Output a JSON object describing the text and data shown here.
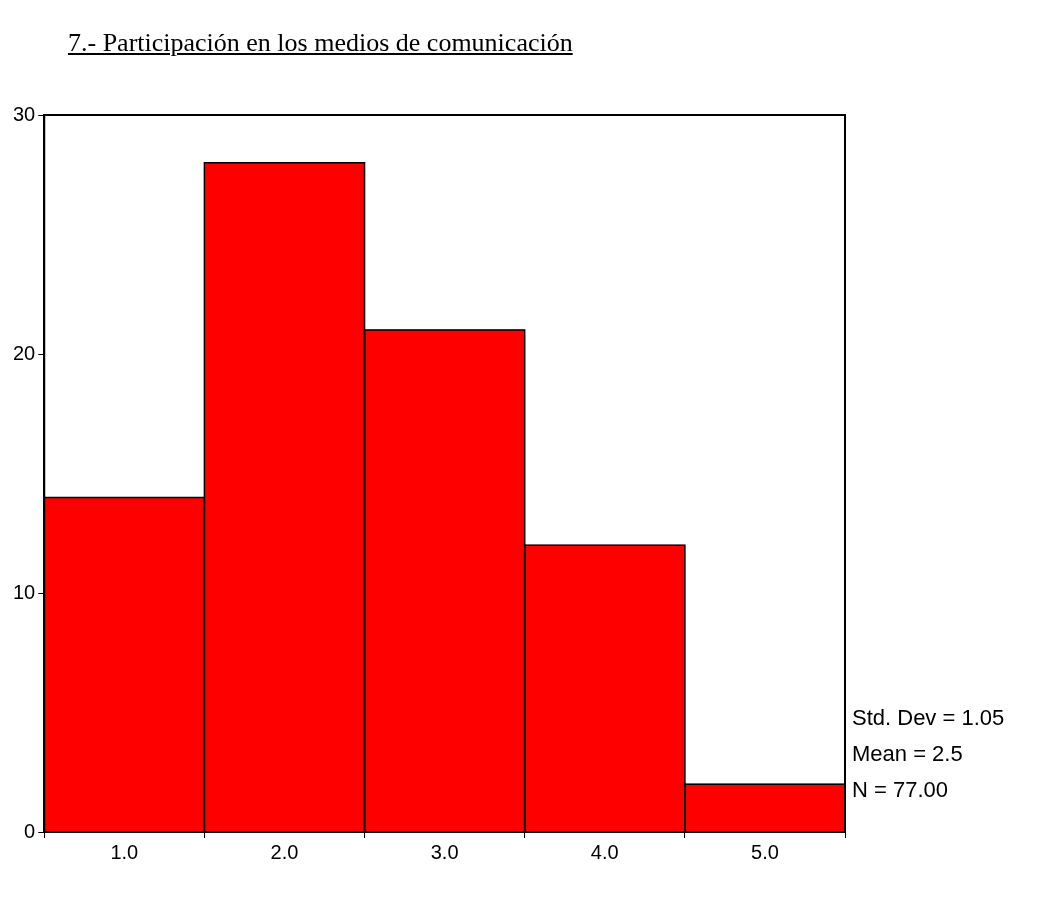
{
  "chart_data": {
    "type": "histogram",
    "title": "7.- Participación en los medios de comunicación",
    "bins": [
      0.5,
      1.5,
      2.5,
      3.5,
      4.5,
      5.5
    ],
    "values": [
      14,
      28,
      21,
      12,
      2
    ],
    "color": "#ff0000",
    "xlim": [
      0.5,
      5.5
    ],
    "xticks": [
      {
        "value": 1,
        "label": "1.0"
      },
      {
        "value": 2,
        "label": "2.0"
      },
      {
        "value": 3,
        "label": "3.0"
      },
      {
        "value": 4,
        "label": "4.0"
      },
      {
        "value": 5,
        "label": "5.0"
      }
    ],
    "ylim": [
      0,
      30
    ],
    "yticks": [
      0,
      10,
      20,
      30
    ],
    "grid": false,
    "legend": false,
    "annotations": [
      "Std. Dev = 1.05",
      "Mean = 2.5",
      "N = 77.00"
    ]
  }
}
